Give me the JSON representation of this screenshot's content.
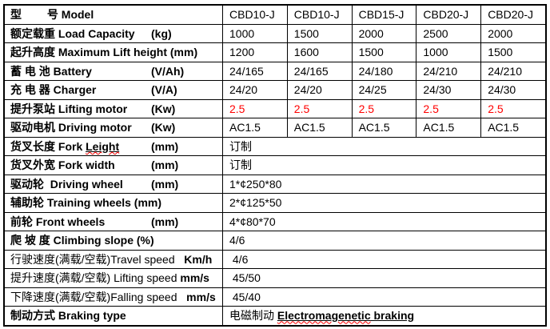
{
  "page": {
    "background": "#ffffff",
    "text_color": "#000000",
    "accent_red": "#ff0000"
  },
  "table": {
    "rows": [
      {
        "name": "model",
        "label": "型　　 号 Model",
        "values": [
          "CBD10-J",
          "CBD10-J",
          "CBD15-J",
          "CBD20-J",
          "CBD20-J"
        ]
      },
      {
        "name": "load-capacity",
        "label": "额定载重 Load Capacity",
        "unit": "(kg)",
        "values": [
          "1000",
          "1500",
          "2000",
          "2500",
          "2000"
        ]
      },
      {
        "name": "max-lift-height",
        "label": "起升高度 Maximum Lift height (mm)",
        "values": [
          "1200",
          "1600",
          "1500",
          "1000",
          "1500"
        ]
      },
      {
        "name": "battery",
        "label": "蓄 电 池 Battery",
        "unit": "(V/Ah)",
        "values": [
          "24/165",
          "24/165",
          "24/180",
          "24/210",
          "24/210"
        ]
      },
      {
        "name": "charger",
        "label": "充 电 器 Charger",
        "unit": "(V/A)",
        "values": [
          "24/20",
          "24/20",
          "24/25",
          "24/30",
          "24/30"
        ]
      },
      {
        "name": "lifting-motor",
        "label": "提升泵站 Lifting motor",
        "unit": "(Kw)",
        "value_color": "#ff0000",
        "values": [
          "2.5",
          "2.5",
          "2.5",
          "2.5",
          "2.5"
        ]
      },
      {
        "name": "driving-motor",
        "label": "驱动电机 Driving motor",
        "unit": "(Kw)",
        "values": [
          "AC1.5",
          "AC1.5",
          "AC1.5",
          "AC1.5",
          "AC1.5"
        ]
      },
      {
        "name": "fork-length",
        "label_pre": "货叉长度 Fork ",
        "label_mis": "Leight",
        "unit": "(mm)",
        "merged_value": "订制"
      },
      {
        "name": "fork-width",
        "label": "货叉外宽 Fork width",
        "unit": "(mm)",
        "merged_value": "订制"
      },
      {
        "name": "driving-wheel",
        "label": "驱动轮  Driving wheel",
        "unit": "(mm)",
        "merged_value": "1*¢250*80"
      },
      {
        "name": "training-wheels",
        "label": "辅助轮 Training wheels (mm)",
        "merged_value": "2*¢125*50"
      },
      {
        "name": "front-wheels",
        "label": "前轮 Front wheels",
        "unit": "(mm)",
        "merged_value": "4*¢80*70"
      },
      {
        "name": "climbing-slope",
        "label": "爬 坡 度 Climbing slope (%)",
        "merged_value": "4/6"
      },
      {
        "name": "travel-speed",
        "label": "行驶速度(满载/空载)Travel speed   ",
        "unit_inline": "Km/h",
        "label_bold": false,
        "merged_value": " 4/6"
      },
      {
        "name": "lifting-speed",
        "label": "提升速度(满载/空载) Lifting speed ",
        "unit_inline": "mm/s",
        "label_bold": false,
        "merged_value": " 45/50"
      },
      {
        "name": "falling-speed",
        "label": "下降速度(满载/空载)Falling speed   ",
        "unit_inline": "mm/s",
        "label_bold": false,
        "merged_value": " 45/40"
      },
      {
        "name": "braking-type",
        "label": "制动方式 Braking type",
        "value_rich": {
          "pre": "电磁制动 ",
          "misspelled": "Electromagenetic",
          "post": " braking"
        }
      }
    ]
  }
}
